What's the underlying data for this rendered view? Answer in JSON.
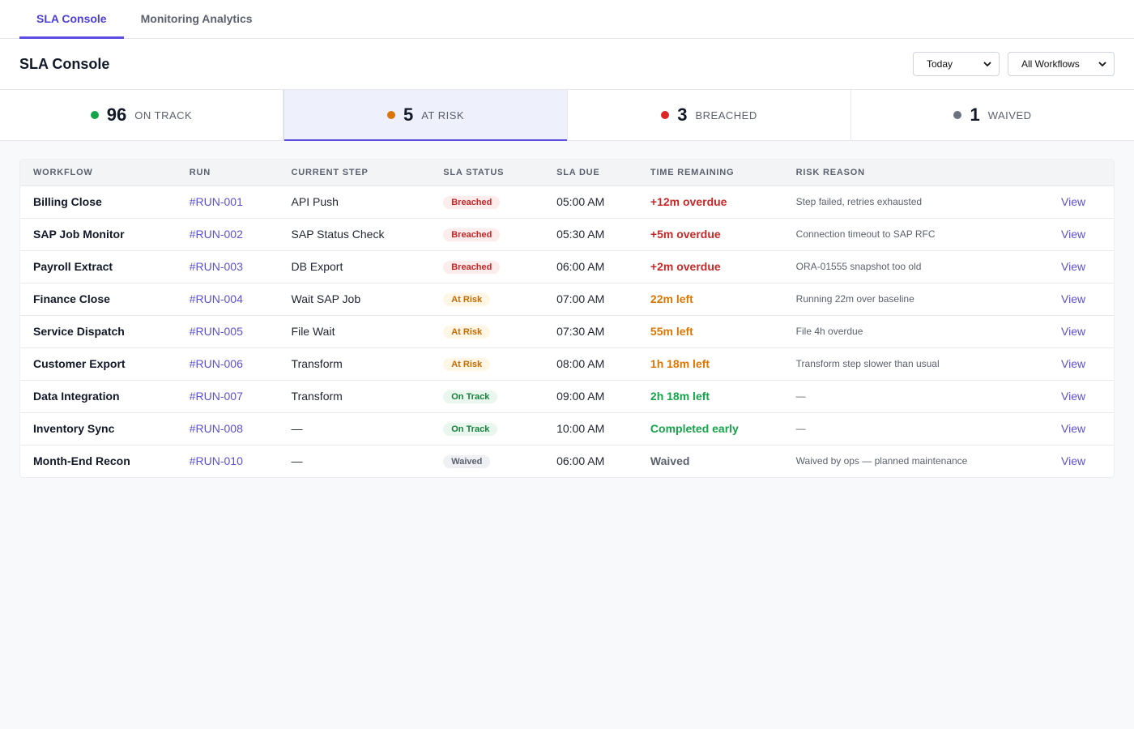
{
  "nav": {
    "tabs": [
      {
        "label": "SLA Console"
      },
      {
        "label": "Monitoring Analytics"
      }
    ]
  },
  "header": {
    "title": "SLA Console",
    "date_filter": "Today",
    "workflow_filter": "All Workflows"
  },
  "stats": [
    {
      "count": "96",
      "label": "ON TRACK",
      "color": "#16a34a"
    },
    {
      "count": "5",
      "label": "AT RISK",
      "color": "#d97706"
    },
    {
      "count": "3",
      "label": "BREACHED",
      "color": "#dc2626"
    },
    {
      "count": "1",
      "label": "WAIVED",
      "color": "#6b7280"
    }
  ],
  "table": {
    "headers": [
      "WORKFLOW",
      "RUN",
      "CURRENT STEP",
      "SLA STATUS",
      "SLA DUE",
      "TIME REMAINING",
      "RISK REASON",
      ""
    ],
    "rows": [
      {
        "workflow": "Billing Close",
        "run": "#RUN-001",
        "step": "API Push",
        "status": "Breached",
        "due": "05:00 AM",
        "remaining": "+12m overdue",
        "reason": "Step failed, retries exhausted",
        "action": "View"
      },
      {
        "workflow": "SAP Job Monitor",
        "run": "#RUN-002",
        "step": "SAP Status Check",
        "status": "Breached",
        "due": "05:30 AM",
        "remaining": "+5m overdue",
        "reason": "Connection timeout to SAP RFC",
        "action": "View"
      },
      {
        "workflow": "Payroll Extract",
        "run": "#RUN-003",
        "step": "DB Export",
        "status": "Breached",
        "due": "06:00 AM",
        "remaining": "+2m overdue",
        "reason": "ORA-01555 snapshot too old",
        "action": "View"
      },
      {
        "workflow": "Finance Close",
        "run": "#RUN-004",
        "step": "Wait SAP Job",
        "status": "At Risk",
        "due": "07:00 AM",
        "remaining": "22m left",
        "reason": "Running 22m over baseline",
        "action": "View"
      },
      {
        "workflow": "Service Dispatch",
        "run": "#RUN-005",
        "step": "File Wait",
        "status": "At Risk",
        "due": "07:30 AM",
        "remaining": "55m left",
        "reason": "File 4h overdue",
        "action": "View"
      },
      {
        "workflow": "Customer Export",
        "run": "#RUN-006",
        "step": "Transform",
        "status": "At Risk",
        "due": "08:00 AM",
        "remaining": "1h 18m left",
        "reason": "Transform step slower than usual",
        "action": "View"
      },
      {
        "workflow": "Data Integration",
        "run": "#RUN-007",
        "step": "Transform",
        "status": "On Track",
        "due": "09:00 AM",
        "remaining": "2h 18m left",
        "reason": "—",
        "action": "View"
      },
      {
        "workflow": "Inventory Sync",
        "run": "#RUN-008",
        "step": "—",
        "status": "On Track",
        "due": "10:00 AM",
        "remaining": "Completed early",
        "reason": "—",
        "action": "View"
      },
      {
        "workflow": "Month-End Recon",
        "run": "#RUN-010",
        "step": "—",
        "status": "Waived",
        "due": "06:00 AM",
        "remaining": "Waived",
        "reason": "Waived by ops — planned maintenance",
        "action": "View"
      }
    ]
  }
}
